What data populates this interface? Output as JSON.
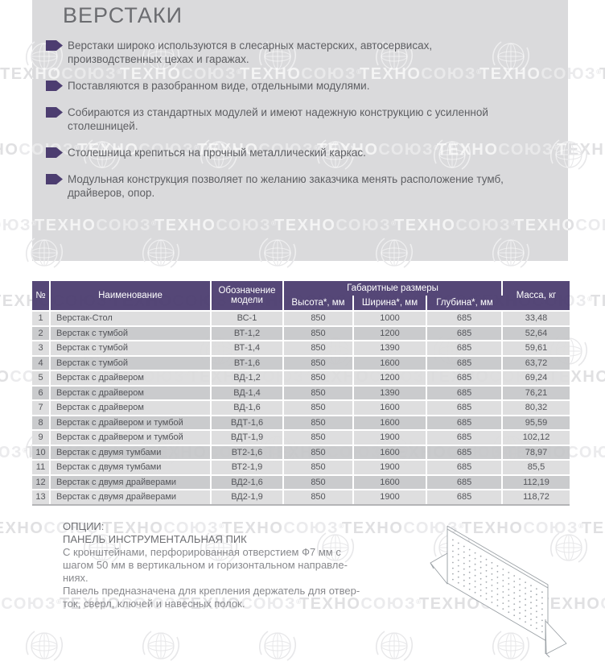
{
  "watermark": {
    "brand_dark": "ТЕХНО",
    "brand_light": "СОЮЗ",
    "reg_mark": "®"
  },
  "header": {
    "title": "ВЕРСТАКИ",
    "bullets": [
      "Верстаки широко используются в слесарных мастерских, автосервисах,\nпроизводственных цехах и гаражах.",
      "Поставляются в разобранном виде, отдельными модулями.",
      "Собираются из стандартных модулей и имеют надежную конструкцию с усиленной\nстолешницей.",
      "Столешница крепиться на прочный металлический каркас.",
      "Модульная конструкция позволяет по желанию заказчика менять расположение тумб,\nдрайверов, опор."
    ]
  },
  "table": {
    "headers": {
      "num": "№",
      "name": "Наименование",
      "model": "Обозначение модели",
      "dims_group": "Габаритные размеры",
      "height": "Высота*, мм",
      "width": "Ширина*, мм",
      "depth": "Глубина*, мм",
      "mass": "Масса, кг"
    },
    "rows": [
      {
        "num": "1",
        "name": "Верстак-Стол",
        "model": "ВС-1",
        "height": "850",
        "width": "1000",
        "depth": "685",
        "mass": "33,48"
      },
      {
        "num": "2",
        "name": "Верстак с тумбой",
        "model": "ВТ-1,2",
        "height": "850",
        "width": "1200",
        "depth": "685",
        "mass": "52,64"
      },
      {
        "num": "3",
        "name": "Верстак с тумбой",
        "model": "ВТ-1,4",
        "height": "850",
        "width": "1390",
        "depth": "685",
        "mass": "59,61"
      },
      {
        "num": "4",
        "name": "Верстак с тумбой",
        "model": "ВТ-1,6",
        "height": "850",
        "width": "1600",
        "depth": "685",
        "mass": "63,72"
      },
      {
        "num": "5",
        "name": "Верстак с драйвером",
        "model": "ВД-1,2",
        "height": "850",
        "width": "1200",
        "depth": "685",
        "mass": "69,24"
      },
      {
        "num": "6",
        "name": "Верстак с драйвером",
        "model": "ВД-1,4",
        "height": "850",
        "width": "1390",
        "depth": "685",
        "mass": "76,21"
      },
      {
        "num": "7",
        "name": "Верстак с драйвером",
        "model": "ВД-1,6",
        "height": "850",
        "width": "1600",
        "depth": "685",
        "mass": "80,32"
      },
      {
        "num": "8",
        "name": "Верстак с драйвером и тумбой",
        "model": "ВДТ-1,6",
        "height": "850",
        "width": "1600",
        "depth": "685",
        "mass": "95,59"
      },
      {
        "num": "9",
        "name": "Верстак с драйвером и тумбой",
        "model": "ВДТ-1,9",
        "height": "850",
        "width": "1900",
        "depth": "685",
        "mass": "102,12"
      },
      {
        "num": "10",
        "name": "Верстак с двумя тумбами",
        "model": "ВТ2-1,6",
        "height": "850",
        "width": "1600",
        "depth": "685",
        "mass": "78,97"
      },
      {
        "num": "11",
        "name": "Верстак с двумя тумбами",
        "model": "ВТ2-1,9",
        "height": "850",
        "width": "1900",
        "depth": "685",
        "mass": "85,5"
      },
      {
        "num": "12",
        "name": "Верстак с двумя драйверами",
        "model": "ВД2-1,6",
        "height": "850",
        "width": "1600",
        "depth": "685",
        "mass": "112,19"
      },
      {
        "num": "13",
        "name": "Верстак с двумя драйверами",
        "model": "ВД2-1,9",
        "height": "850",
        "width": "1900",
        "depth": "685",
        "mass": "118,72"
      }
    ]
  },
  "options": {
    "label": "ОПЦИИ:",
    "product_title": "ПАНЕЛЬ ИНСТРУМЕНТАЛЬНАЯ ПИК",
    "body": "С кронштейнами, перфорированная отверстием Ф7 мм с\nшагом 50 мм в вертикальном и горизонтальном направле-\nниях.\nПанель предназначена для крепления держатель для отвер-\nток, сверл, ключей и навесных полок."
  },
  "colors": {
    "accent_purple": "#4c3d70",
    "panel_gray": "#d8d8da",
    "row_light": "#dbdbdd",
    "row_dark": "#c7c8ca",
    "text_gray": "#5e5f63"
  }
}
